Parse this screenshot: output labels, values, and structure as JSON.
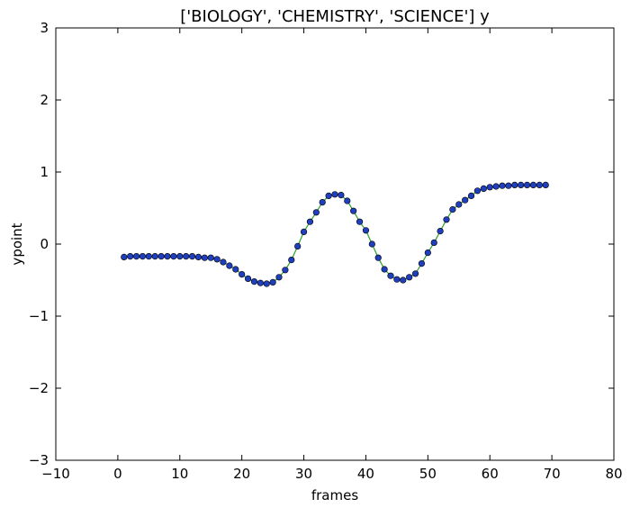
{
  "chart_data": {
    "type": "line",
    "title": "['BIOLOGY', 'CHEMISTRY', 'SCIENCE'] y",
    "xlabel": "frames",
    "ylabel": "ypoint",
    "xlim": [
      -10,
      80
    ],
    "ylim": [
      -3,
      3
    ],
    "xticks": [
      -10,
      0,
      10,
      20,
      30,
      40,
      50,
      60,
      70,
      80
    ],
    "xtick_labels": [
      "−10",
      "0",
      "10",
      "20",
      "30",
      "40",
      "50",
      "60",
      "70",
      "80"
    ],
    "yticks": [
      -3,
      -2,
      -1,
      0,
      1,
      2,
      3
    ],
    "ytick_labels": [
      "−3",
      "−2",
      "−1",
      "0",
      "1",
      "2",
      "3"
    ],
    "grid": false,
    "line_color": "#2ca02c",
    "marker_color": "#1f3fbf",
    "x": [
      1,
      2,
      3,
      4,
      5,
      6,
      7,
      8,
      9,
      10,
      11,
      12,
      13,
      14,
      15,
      16,
      17,
      18,
      19,
      20,
      21,
      22,
      23,
      24,
      25,
      26,
      27,
      28,
      29,
      30,
      31,
      32,
      33,
      34,
      35,
      36,
      37,
      38,
      39,
      40,
      41,
      42,
      43,
      44,
      45,
      46,
      47,
      48,
      49,
      50,
      51,
      52,
      53,
      54,
      55,
      56,
      57,
      58,
      59,
      60,
      61,
      62,
      63,
      64,
      65,
      66,
      67,
      68,
      69
    ],
    "y": [
      -0.18,
      -0.17,
      -0.17,
      -0.17,
      -0.17,
      -0.17,
      -0.17,
      -0.17,
      -0.17,
      -0.17,
      -0.17,
      -0.17,
      -0.18,
      -0.19,
      -0.19,
      -0.21,
      -0.25,
      -0.3,
      -0.35,
      -0.42,
      -0.48,
      -0.52,
      -0.54,
      -0.55,
      -0.53,
      -0.46,
      -0.36,
      -0.22,
      -0.03,
      0.17,
      0.31,
      0.44,
      0.58,
      0.67,
      0.69,
      0.68,
      0.6,
      0.46,
      0.31,
      0.19,
      0.0,
      -0.19,
      -0.35,
      -0.44,
      -0.49,
      -0.5,
      -0.46,
      -0.41,
      -0.27,
      -0.12,
      0.02,
      0.18,
      0.34,
      0.48,
      0.55,
      0.61,
      0.67,
      0.74,
      0.77,
      0.79,
      0.8,
      0.81,
      0.81,
      0.82,
      0.82,
      0.82,
      0.82,
      0.82,
      0.82
    ]
  }
}
